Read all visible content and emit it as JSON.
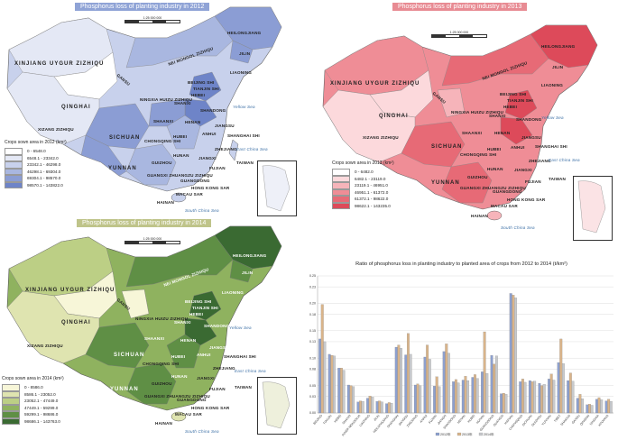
{
  "maps": [
    {
      "id": "2012",
      "title": "Phosphorus loss of planting industry in 2012",
      "title_color": "#8fa3d6",
      "scale_text": "1:25 000 000",
      "scale_ticks": [
        "0",
        "250",
        "500",
        "750",
        "1 000km"
      ],
      "legend_title": "Crops sown area in 2012 (km²)",
      "legend": [
        {
          "range": "0  -  6548.0",
          "color": "#ffffff"
        },
        {
          "range": "6548.1  -  23342.0",
          "color": "#e4e8f5"
        },
        {
          "range": "23342.1  -  46298.0",
          "color": "#c8d1ec"
        },
        {
          "range": "46298.1  -  69304.0",
          "color": "#a9b7e0"
        },
        {
          "range": "69304.1  -  98570.0",
          "color": "#8b9dd4"
        },
        {
          "range": "98570.1  -  143822.0",
          "color": "#6e84c8"
        }
      ]
    },
    {
      "id": "2013",
      "title": "Phosphorus loss of planting industry in 2013",
      "title_color": "#e88b93",
      "scale_text": "1:25 000 000",
      "scale_ticks": [
        "0",
        "250",
        "500",
        "1 000km"
      ],
      "legend_title": "Crops sown area in 2013 (km²)",
      "legend": [
        {
          "range": "0  -  6482.0",
          "color": "#ffffff"
        },
        {
          "range": "6482.1  -  23119.0",
          "color": "#fcd9dc"
        },
        {
          "range": "23119.1  -  46951.0",
          "color": "#f6b4ba"
        },
        {
          "range": "46951.1  -  61372.0",
          "color": "#ef8d96"
        },
        {
          "range": "61372.1  -  98622.0",
          "color": "#e76a76"
        },
        {
          "range": "98622.1  -  143235.0",
          "color": "#dd4a5a"
        }
      ]
    },
    {
      "id": "2014",
      "title": "Phosphorus loss of planting industry in 2014",
      "title_color": "#bfc48a",
      "scale_text": "1:25 000 000",
      "scale_ticks": [
        "0",
        "250",
        "500",
        "750",
        "1 000km"
      ],
      "legend_title": "Crops sown area in 2014 (km²)",
      "legend": [
        {
          "range": "0  -  8586.0",
          "color": "#f7f6d8"
        },
        {
          "range": "8586.1  -  23052.0",
          "color": "#dfe4b0"
        },
        {
          "range": "23052.1  -  47449.0",
          "color": "#bccf85"
        },
        {
          "range": "47449.1  -  59299.0",
          "color": "#8fb25f"
        },
        {
          "range": "59299.1  -  98686.0",
          "color": "#5f8f45"
        },
        {
          "range": "98686.1  -  143763.0",
          "color": "#3a6a32"
        }
      ]
    }
  ],
  "region_labels": [
    "HEILONGJIANG",
    "JILIN",
    "LIAONING",
    "NEI MONGOL ZIZHIQU",
    "BEIJING SHI",
    "TIANJIN SHI",
    "HEBEI",
    "SHANXI",
    "SHANDONG",
    "XINJIANG UYGUR ZIZHIQU",
    "QINGHAI",
    "GANSU",
    "NINGXIA HUIZU ZIZHIQU",
    "SHAANXI",
    "HENAN",
    "JIANGSU",
    "SHANGHAI SHI",
    "ANHUI",
    "HUBEI",
    "ZHEJIANG",
    "SICHUAN",
    "CHONGQING SHI",
    "JIANGXI",
    "HUNAN",
    "FUJIAN",
    "TAIWAN",
    "XIZANG ZIZHIQU",
    "GUIZHOU",
    "YUNNAN",
    "GUANGXI ZHUANGZU ZIZHIQU",
    "GUANGDONG",
    "HONG KONG SAR",
    "MACAU SAR",
    "HAINAN"
  ],
  "sea_labels": [
    "Yellow Sea",
    "East China Sea",
    "South China Sea"
  ],
  "chart_data": {
    "type": "bar",
    "title": "Ratio of phosphorus loss in planting industry to planted area of crops from 2012 to 2014 (t/km²)",
    "categories": [
      "BEIJING",
      "TIANJIN",
      "HEBEI",
      "SHANXI",
      "INNER MONGOLIA",
      "LIAONING",
      "JILIN",
      "HEILONGJIANG",
      "SHANGHAI",
      "JIANGSU",
      "ZHEJIANG",
      "ANHUI",
      "FUJIAN",
      "JIANGXI",
      "SHANDONG",
      "HENAN",
      "HUBEI",
      "HUNAN",
      "GUANGDONG",
      "GUANGXI",
      "HAINAN",
      "CHONGQING",
      "SICHUAN",
      "GUIZHOU",
      "YUNNAN",
      "TIBET",
      "SHAANXI",
      "GANSU",
      "QINGHAI",
      "NINGXIA",
      "XINJIANG"
    ],
    "series": [
      {
        "name": "2012",
        "color": "#8da0cf",
        "values": [
          0.135,
          0.107,
          0.082,
          0.051,
          0.02,
          0.027,
          0.021,
          0.017,
          0.12,
          0.106,
          0.051,
          0.102,
          0.049,
          0.112,
          0.057,
          0.06,
          0.065,
          0.075,
          0.105,
          0.035,
          0.218,
          0.057,
          0.059,
          0.054,
          0.062,
          0.092,
          0.059,
          0.027,
          0.015,
          0.025,
          0.022
        ]
      },
      {
        "name": "2013",
        "color": "#d9b48a",
        "values": [
          0.198,
          0.105,
          0.082,
          0.05,
          0.022,
          0.031,
          0.022,
          0.019,
          0.124,
          0.145,
          0.053,
          0.124,
          0.066,
          0.126,
          0.061,
          0.067,
          0.07,
          0.148,
          0.089,
          0.036,
          0.215,
          0.062,
          0.057,
          0.05,
          0.071,
          0.135,
          0.073,
          0.034,
          0.016,
          0.028,
          0.025
        ]
      },
      {
        "name": "2014",
        "color": "#c7c9cc",
        "values": [
          0.13,
          0.104,
          0.078,
          0.048,
          0.021,
          0.029,
          0.02,
          0.018,
          0.118,
          0.107,
          0.05,
          0.098,
          0.048,
          0.109,
          0.055,
          0.059,
          0.063,
          0.072,
          0.104,
          0.034,
          0.21,
          0.056,
          0.058,
          0.052,
          0.06,
          0.09,
          0.058,
          0.026,
          0.014,
          0.024,
          0.021
        ]
      }
    ],
    "ylim": [
      0,
      0.25
    ],
    "yticks": [
      "0.00",
      "0.03",
      "0.05",
      "0.08",
      "0.10",
      "0.13",
      "0.15",
      "0.18",
      "0.20",
      "0.23",
      "0.25"
    ],
    "legend": [
      "2012年",
      "2013年",
      "2014年"
    ],
    "grid": true
  }
}
